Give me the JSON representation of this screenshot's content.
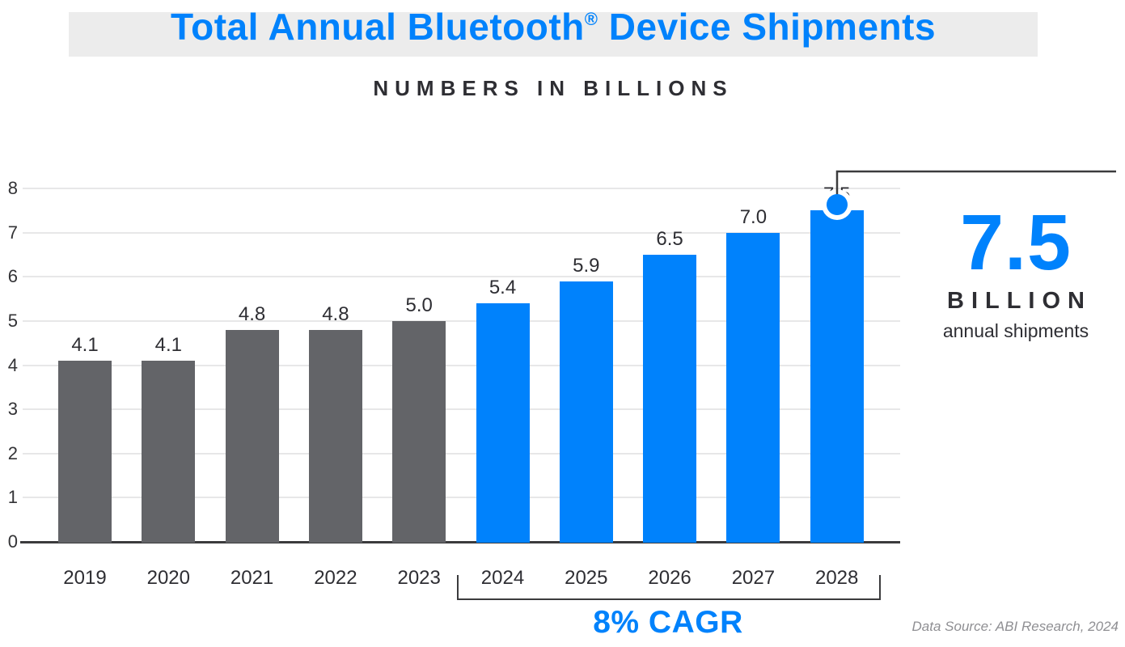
{
  "colors": {
    "accent": "#0082fc",
    "bar_historical": "#636468",
    "text_dark": "#2e2e33",
    "grid": "#e7e7e8",
    "axis": "#3b3b3d",
    "muted_text": "#8f8f93",
    "title_band_bg": "#ececec"
  },
  "header": {
    "title_pre": "Total Annual Bluetooth",
    "title_reg": "®",
    "title_post": " Device Shipments",
    "subtitle": "NUMBERS IN BILLIONS"
  },
  "chart_data": {
    "type": "bar",
    "title": "Total Annual Bluetooth® Device Shipments",
    "subtitle": "Numbers in Billions",
    "categories": [
      "2019",
      "2020",
      "2021",
      "2022",
      "2023",
      "2024",
      "2025",
      "2026",
      "2027",
      "2028"
    ],
    "values": [
      4.1,
      4.1,
      4.8,
      4.8,
      5.0,
      5.4,
      5.9,
      6.5,
      7.0,
      7.5
    ],
    "data_labels": [
      "4.1",
      "4.1",
      "4.8",
      "4.8",
      "5.0",
      "5.4",
      "5.9",
      "6.5",
      "7.0",
      "7.5"
    ],
    "ylim": [
      0,
      8
    ],
    "yticks": [
      "0",
      "1",
      "2",
      "3",
      "4",
      "5",
      "6",
      "7",
      "8"
    ],
    "grid": true,
    "legend_position": "none",
    "historical_color": "#636468",
    "forecast_color": "#0082fc",
    "forecast_start_index": 5,
    "forecast_cagr_label": "8% CAGR",
    "highlight": {
      "category": "2028",
      "value_label": "7.5",
      "unit_label": "BILLION",
      "caption": "annual shipments"
    }
  },
  "footer": {
    "source": "Data Source: ABI Research, 2024"
  }
}
